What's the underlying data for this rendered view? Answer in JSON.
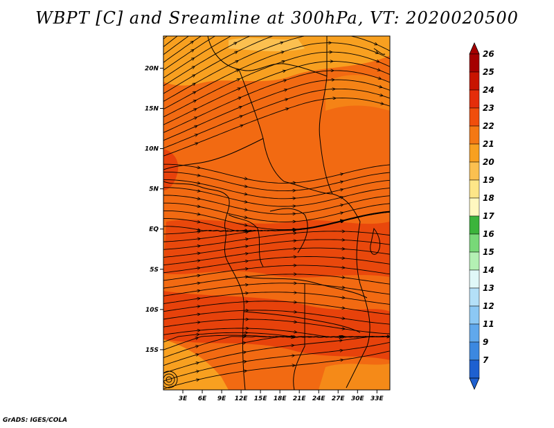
{
  "title": "WBPT [C] and Sreamline at 300hPa, VT: 2020020500",
  "credit": "GrADS: IGES/COLA",
  "map": {
    "lon_range": [
      0,
      35
    ],
    "lat_range": [
      -20,
      24
    ],
    "x_ticks": [
      {
        "lon": 3,
        "label": "3E"
      },
      {
        "lon": 6,
        "label": "6E"
      },
      {
        "lon": 9,
        "label": "9E"
      },
      {
        "lon": 12,
        "label": "12E"
      },
      {
        "lon": 15,
        "label": "15E"
      },
      {
        "lon": 18,
        "label": "18E"
      },
      {
        "lon": 21,
        "label": "21E"
      },
      {
        "lon": 24,
        "label": "24E"
      },
      {
        "lon": 27,
        "label": "27E"
      },
      {
        "lon": 30,
        "label": "30E"
      },
      {
        "lon": 33,
        "label": "33E"
      }
    ],
    "y_ticks": [
      {
        "lat": 20,
        "label": "20N"
      },
      {
        "lat": 15,
        "label": "15N"
      },
      {
        "lat": 10,
        "label": "10N"
      },
      {
        "lat": 5,
        "label": "5N"
      },
      {
        "lat": 0,
        "label": "EQ"
      },
      {
        "lat": -5,
        "label": "5S"
      },
      {
        "lat": -10,
        "label": "10S"
      },
      {
        "lat": -15,
        "label": "15S"
      }
    ],
    "field_colors": {
      "dominant": "#f26a12",
      "warm_patch": "#e8420c",
      "cool_patch": "#f8a020"
    }
  },
  "colorbar": {
    "levels": [
      {
        "label": "26",
        "color": "#a50000"
      },
      {
        "label": "25",
        "color": "#c81400"
      },
      {
        "label": "24",
        "color": "#e42d0a"
      },
      {
        "label": "23",
        "color": "#f04e0c"
      },
      {
        "label": "22",
        "color": "#f47814"
      },
      {
        "label": "21",
        "color": "#f8a020"
      },
      {
        "label": "20",
        "color": "#fbc050"
      },
      {
        "label": "19",
        "color": "#fde688"
      },
      {
        "label": "18",
        "color": "#fff8c0"
      },
      {
        "label": "17",
        "color": "#3cb43c"
      },
      {
        "label": "16",
        "color": "#78d878"
      },
      {
        "label": "15",
        "color": "#b4f0b4"
      },
      {
        "label": "14",
        "color": "#e0f8f8"
      },
      {
        "label": "13",
        "color": "#b4e0f8"
      },
      {
        "label": "12",
        "color": "#8cc8f4"
      },
      {
        "label": "11",
        "color": "#60a8ec"
      },
      {
        "label": "9",
        "color": "#3c88e0"
      },
      {
        "label": "7",
        "color": "#1e60d0"
      }
    ],
    "below_color": "#1e60d0"
  }
}
